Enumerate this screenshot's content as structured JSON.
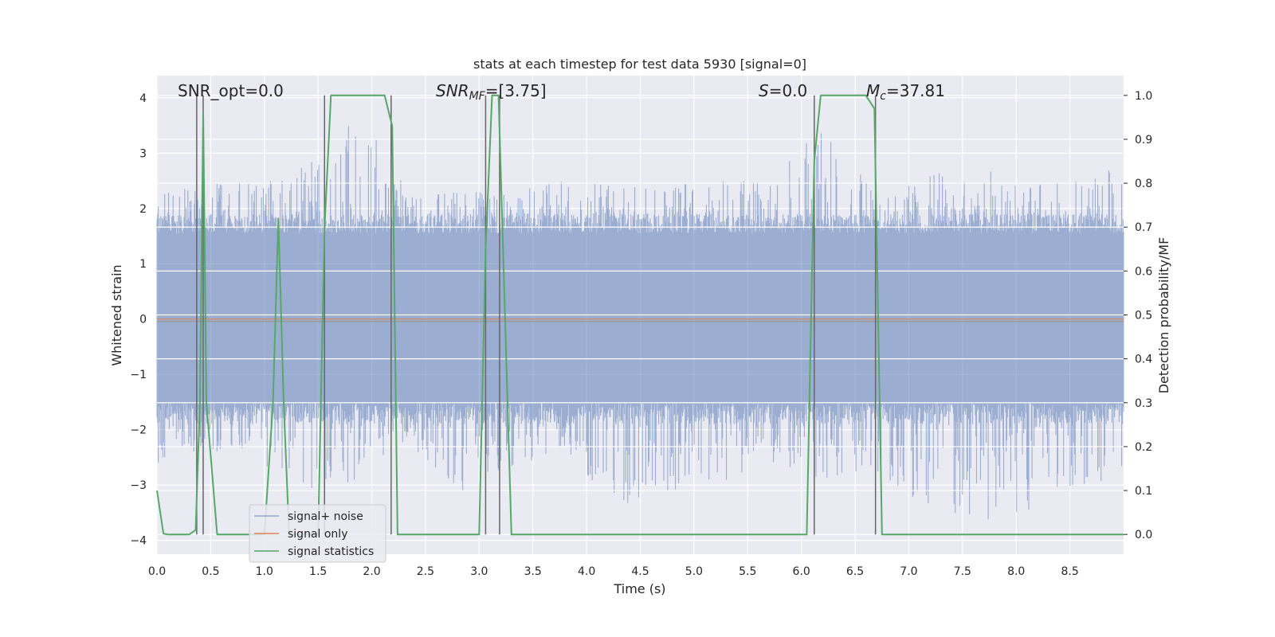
{
  "chart_data": {
    "type": "line",
    "title": "stats at each timestep for test data 5930 [signal=0]",
    "xlabel": "Time (s)",
    "ylabel": "Whitened strain",
    "ylabel_right": "Detection probability/MF",
    "xlim": [
      0.0,
      9.0
    ],
    "ylim": [
      -4.25,
      4.4
    ],
    "ylim_right": [
      -0.045,
      1.045
    ],
    "xticks": [
      0.0,
      0.5,
      1.0,
      1.5,
      2.0,
      2.5,
      3.0,
      3.5,
      4.0,
      4.5,
      5.0,
      5.5,
      6.0,
      6.5,
      7.0,
      7.5,
      8.0,
      8.5
    ],
    "xtick_labels": [
      "0.0",
      "0.5",
      "1.0",
      "1.5",
      "2.0",
      "2.5",
      "3.0",
      "3.5",
      "4.0",
      "4.5",
      "5.0",
      "5.5",
      "6.0",
      "6.5",
      "7.0",
      "7.5",
      "8.0",
      "8.5"
    ],
    "yticks": [
      -4,
      -3,
      -2,
      -1,
      0,
      1,
      2,
      3,
      4
    ],
    "ytick_labels": [
      "−4",
      "−3",
      "−2",
      "−1",
      "0",
      "1",
      "2",
      "3",
      "4"
    ],
    "yticks_right": [
      0.0,
      0.1,
      0.2,
      0.3,
      0.4,
      0.5,
      0.6,
      0.7,
      0.8,
      0.9,
      1.0
    ],
    "ytick_labels_right": [
      "0.0",
      "0.1",
      "0.2",
      "0.3",
      "0.4",
      "0.5",
      "0.6",
      "0.7",
      "0.8",
      "0.9",
      "1.0"
    ],
    "annotations": {
      "snr_opt": "SNR_opt=0.0",
      "snr_mf_main": "SNR",
      "snr_mf_sub": "MF",
      "snr_mf_value": "=[3.75]",
      "s_main": "S",
      "s_value": "=0.0",
      "mc_main": "M",
      "mc_sub": "c",
      "mc_value": "=37.81"
    },
    "legend": {
      "position": "lower-left",
      "entries": [
        "signal+ noise",
        "signal only",
        "signal statistics"
      ]
    },
    "series": [
      {
        "name": "signal+ noise",
        "color": "#4c72b0",
        "style": "noise band",
        "x_range": [
          0.0,
          9.0
        ],
        "envelope_pos": [
          2.2,
          2.6,
          2.4,
          2.8,
          3.7,
          2.2,
          2.3,
          2.3,
          2.5,
          2.4,
          2.4,
          2.5,
          2.5,
          3.4,
          2.6,
          2.5,
          2.9,
          2.4,
          2.5,
          2.8
        ],
        "envelope_neg": [
          -2.6,
          -2.4,
          -2.6,
          -3.1,
          -2.9,
          -2.3,
          -3.1,
          -2.7,
          -2.3,
          -3.4,
          -3.1,
          -3.0,
          -2.6,
          -2.9,
          -2.7,
          -3.3,
          -3.6,
          -3.7,
          -3.0,
          -2.9
        ]
      },
      {
        "name": "signal only",
        "color": "#dd8452",
        "x": [
          0.0,
          9.0
        ],
        "y": [
          0.0,
          0.0
        ]
      },
      {
        "name": "signal statistics",
        "color": "#55a868",
        "axis": "right",
        "x": [
          0.0,
          0.06,
          0.1,
          0.3,
          0.36,
          0.4,
          0.43,
          0.46,
          0.56,
          1.0,
          1.08,
          1.13,
          1.18,
          1.23,
          1.5,
          1.56,
          1.62,
          2.12,
          2.19,
          2.24,
          3.0,
          3.06,
          3.12,
          3.18,
          3.3,
          6.05,
          6.12,
          6.18,
          6.6,
          6.68,
          6.75,
          6.8,
          9.0
        ],
        "y": [
          0.1,
          0.002,
          0.0,
          0.0,
          0.01,
          0.3,
          0.96,
          0.3,
          0.0,
          0.0,
          0.3,
          0.72,
          0.3,
          0.0,
          0.0,
          0.7,
          1.0,
          1.0,
          0.93,
          0.0,
          0.0,
          0.65,
          1.0,
          1.0,
          0.0,
          0.0,
          0.85,
          1.0,
          1.0,
          0.97,
          0.0,
          0.0,
          0.0
        ]
      }
    ],
    "vlines": [
      0.37,
      0.43,
      1.56,
      2.18,
      3.06,
      3.19,
      6.12,
      6.69
    ]
  }
}
